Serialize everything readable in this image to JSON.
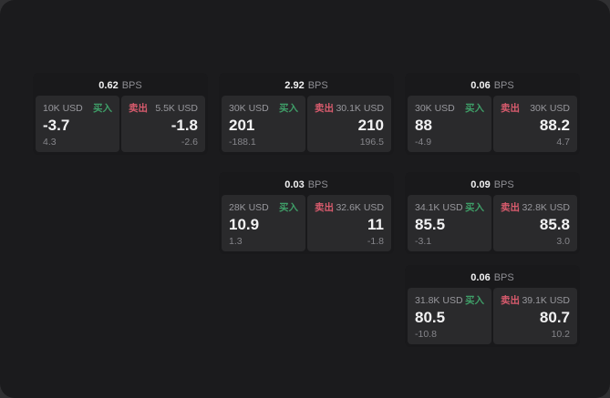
{
  "colors": {
    "page_bg": "#303032",
    "container_bg": "#1b1b1d",
    "card_bg": "#19191b",
    "panel_bg": "#2a2a2c",
    "text_primary": "#f2f2f3",
    "text_secondary": "#98989d",
    "text_muted": "#85858a",
    "buy_green": "#3f9e68",
    "sell_red": "#d85b6d"
  },
  "labels": {
    "bps_suffix": "BPS",
    "buy_side": "买入",
    "sell_side": "卖出"
  },
  "cards": [
    {
      "bps": "0.62",
      "buy": {
        "size": "10K USD",
        "price": "-3.7",
        "delta": "4.3"
      },
      "sell": {
        "size": "5.5K USD",
        "price": "-1.8",
        "delta": "-2.6"
      },
      "col": 1,
      "row": 1
    },
    {
      "bps": "2.92",
      "buy": {
        "size": "30K USD",
        "price": "201",
        "delta": "-188.1"
      },
      "sell": {
        "size": "30.1K USD",
        "price": "210",
        "delta": "196.5"
      },
      "col": 2,
      "row": 1
    },
    {
      "bps": "0.06",
      "buy": {
        "size": "30K USD",
        "price": "88",
        "delta": "-4.9"
      },
      "sell": {
        "size": "30K USD",
        "price": "88.2",
        "delta": "4.7"
      },
      "col": 3,
      "row": 1
    },
    {
      "bps": "0.03",
      "buy": {
        "size": "28K USD",
        "price": "10.9",
        "delta": "1.3"
      },
      "sell": {
        "size": "32.6K USD",
        "price": "11",
        "delta": "-1.8"
      },
      "col": 2,
      "row": 2
    },
    {
      "bps": "0.09",
      "buy": {
        "size": "34.1K USD",
        "price": "85.5",
        "delta": "-3.1"
      },
      "sell": {
        "size": "32.8K USD",
        "price": "85.8",
        "delta": "3.0"
      },
      "col": 3,
      "row": 2
    },
    {
      "bps": "0.06",
      "buy": {
        "size": "31.8K USD",
        "price": "80.5",
        "delta": "-10.8"
      },
      "sell": {
        "size": "39.1K USD",
        "price": "80.7",
        "delta": "10.2"
      },
      "col": 3,
      "row": 3
    }
  ]
}
